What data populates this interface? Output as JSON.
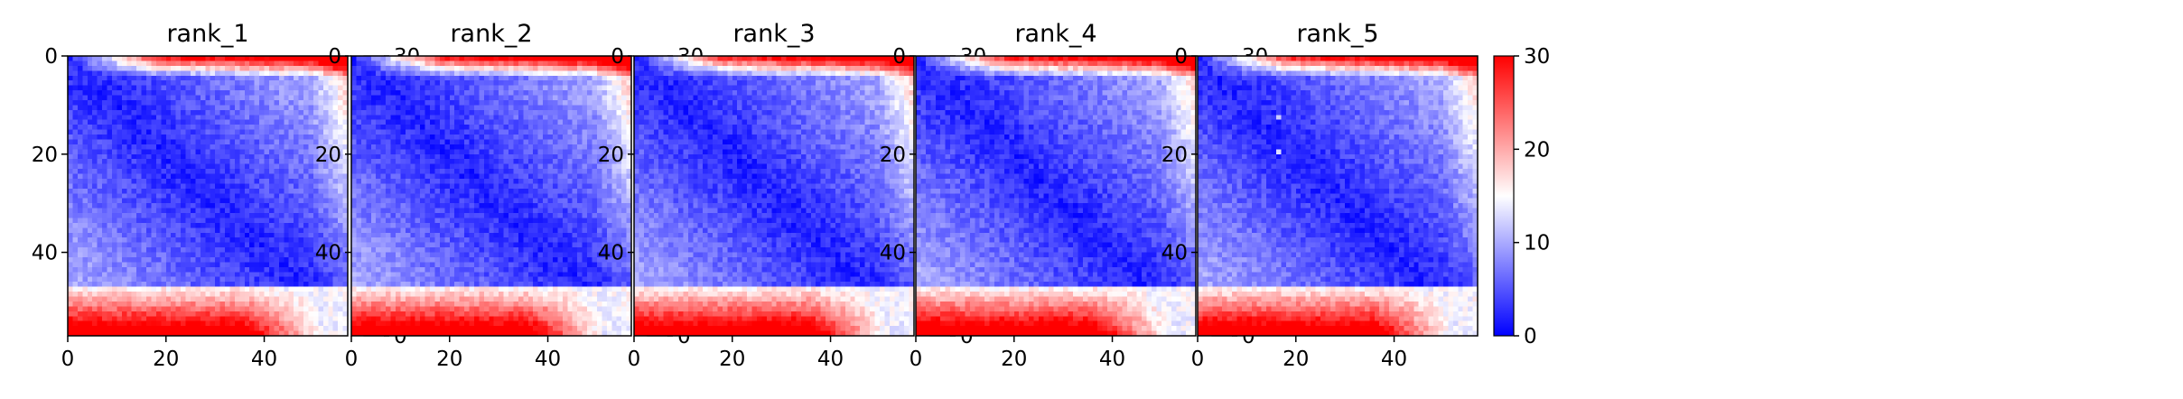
{
  "chart_data": [
    {
      "type": "heatmap",
      "title": "rank_1",
      "grid_size": 57,
      "x_ticks": [
        0,
        20,
        40
      ],
      "y_ticks": [
        0,
        20,
        40
      ],
      "colorbar": {
        "min": 0,
        "max": 30,
        "ticks": [
          0,
          10,
          20,
          30
        ],
        "colormap": [
          "#0000ff",
          "#ffffff",
          "#ff0000"
        ]
      },
      "markers": []
    },
    {
      "type": "heatmap",
      "title": "rank_2",
      "grid_size": 57,
      "x_ticks": [
        0,
        20,
        40
      ],
      "y_ticks": [
        0,
        20,
        40
      ],
      "colorbar": {
        "min": 0,
        "max": 30,
        "ticks": [
          0,
          10,
          20,
          30
        ],
        "colormap": [
          "#0000ff",
          "#ffffff",
          "#ff0000"
        ]
      },
      "markers": []
    },
    {
      "type": "heatmap",
      "title": "rank_3",
      "grid_size": 57,
      "x_ticks": [
        0,
        20,
        40
      ],
      "y_ticks": [
        0,
        20,
        40
      ],
      "colorbar": {
        "min": 0,
        "max": 30,
        "ticks": [
          0,
          10,
          20,
          30
        ],
        "colormap": [
          "#0000ff",
          "#ffffff",
          "#ff0000"
        ]
      },
      "markers": []
    },
    {
      "type": "heatmap",
      "title": "rank_4",
      "grid_size": 57,
      "x_ticks": [
        0,
        20,
        40
      ],
      "y_ticks": [
        0,
        20,
        40
      ],
      "colorbar": {
        "min": 0,
        "max": 30,
        "ticks": [
          0,
          10,
          20,
          30
        ],
        "colormap": [
          "#0000ff",
          "#ffffff",
          "#ff0000"
        ]
      },
      "markers": []
    },
    {
      "type": "heatmap",
      "title": "rank_5",
      "grid_size": 57,
      "x_ticks": [
        0,
        20,
        40
      ],
      "y_ticks": [
        0,
        20,
        40
      ],
      "colorbar": {
        "min": 0,
        "max": 30,
        "ticks": [
          0,
          10,
          20,
          30
        ],
        "colormap": [
          "#0000ff",
          "#ffffff",
          "#ff0000"
        ]
      },
      "markers": [
        {
          "row": 12,
          "col": 16,
          "value": 12
        },
        {
          "row": 19,
          "col": 16,
          "value": 13
        }
      ]
    }
  ]
}
